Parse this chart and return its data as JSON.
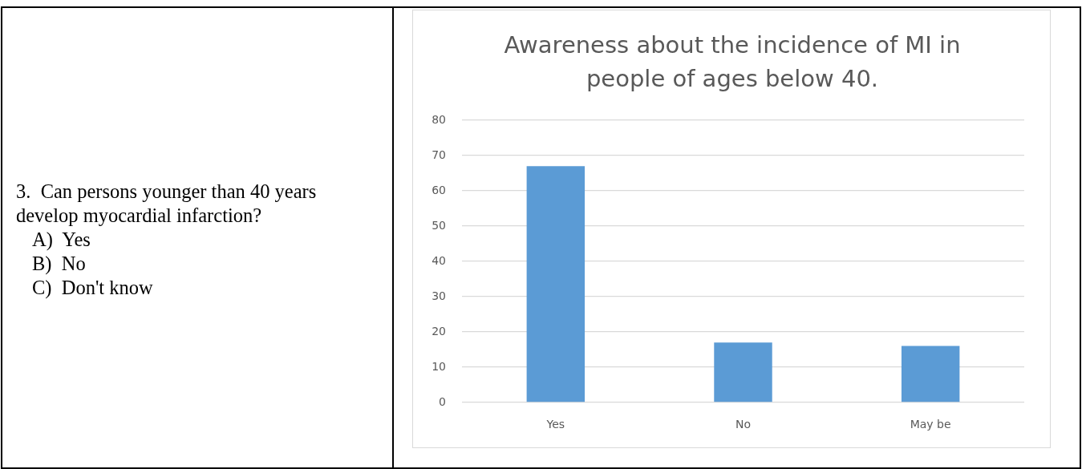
{
  "chart_data": {
    "type": "bar",
    "title": "Awareness about the incidence of MI in people of ages below 40.",
    "categories": [
      "Yes",
      "No",
      "May be"
    ],
    "values": [
      67,
      17,
      16
    ],
    "color": "#5b9bd5",
    "ylim": [
      0,
      80
    ],
    "yticks": [
      0,
      10,
      20,
      30,
      40,
      50,
      60,
      70,
      80
    ],
    "grid": "y",
    "annotations": [
      "3.  Can persons younger than 40 years develop myocardial infarction?",
      "A)  Yes",
      "B)  No",
      "C)  Don't know"
    ]
  }
}
